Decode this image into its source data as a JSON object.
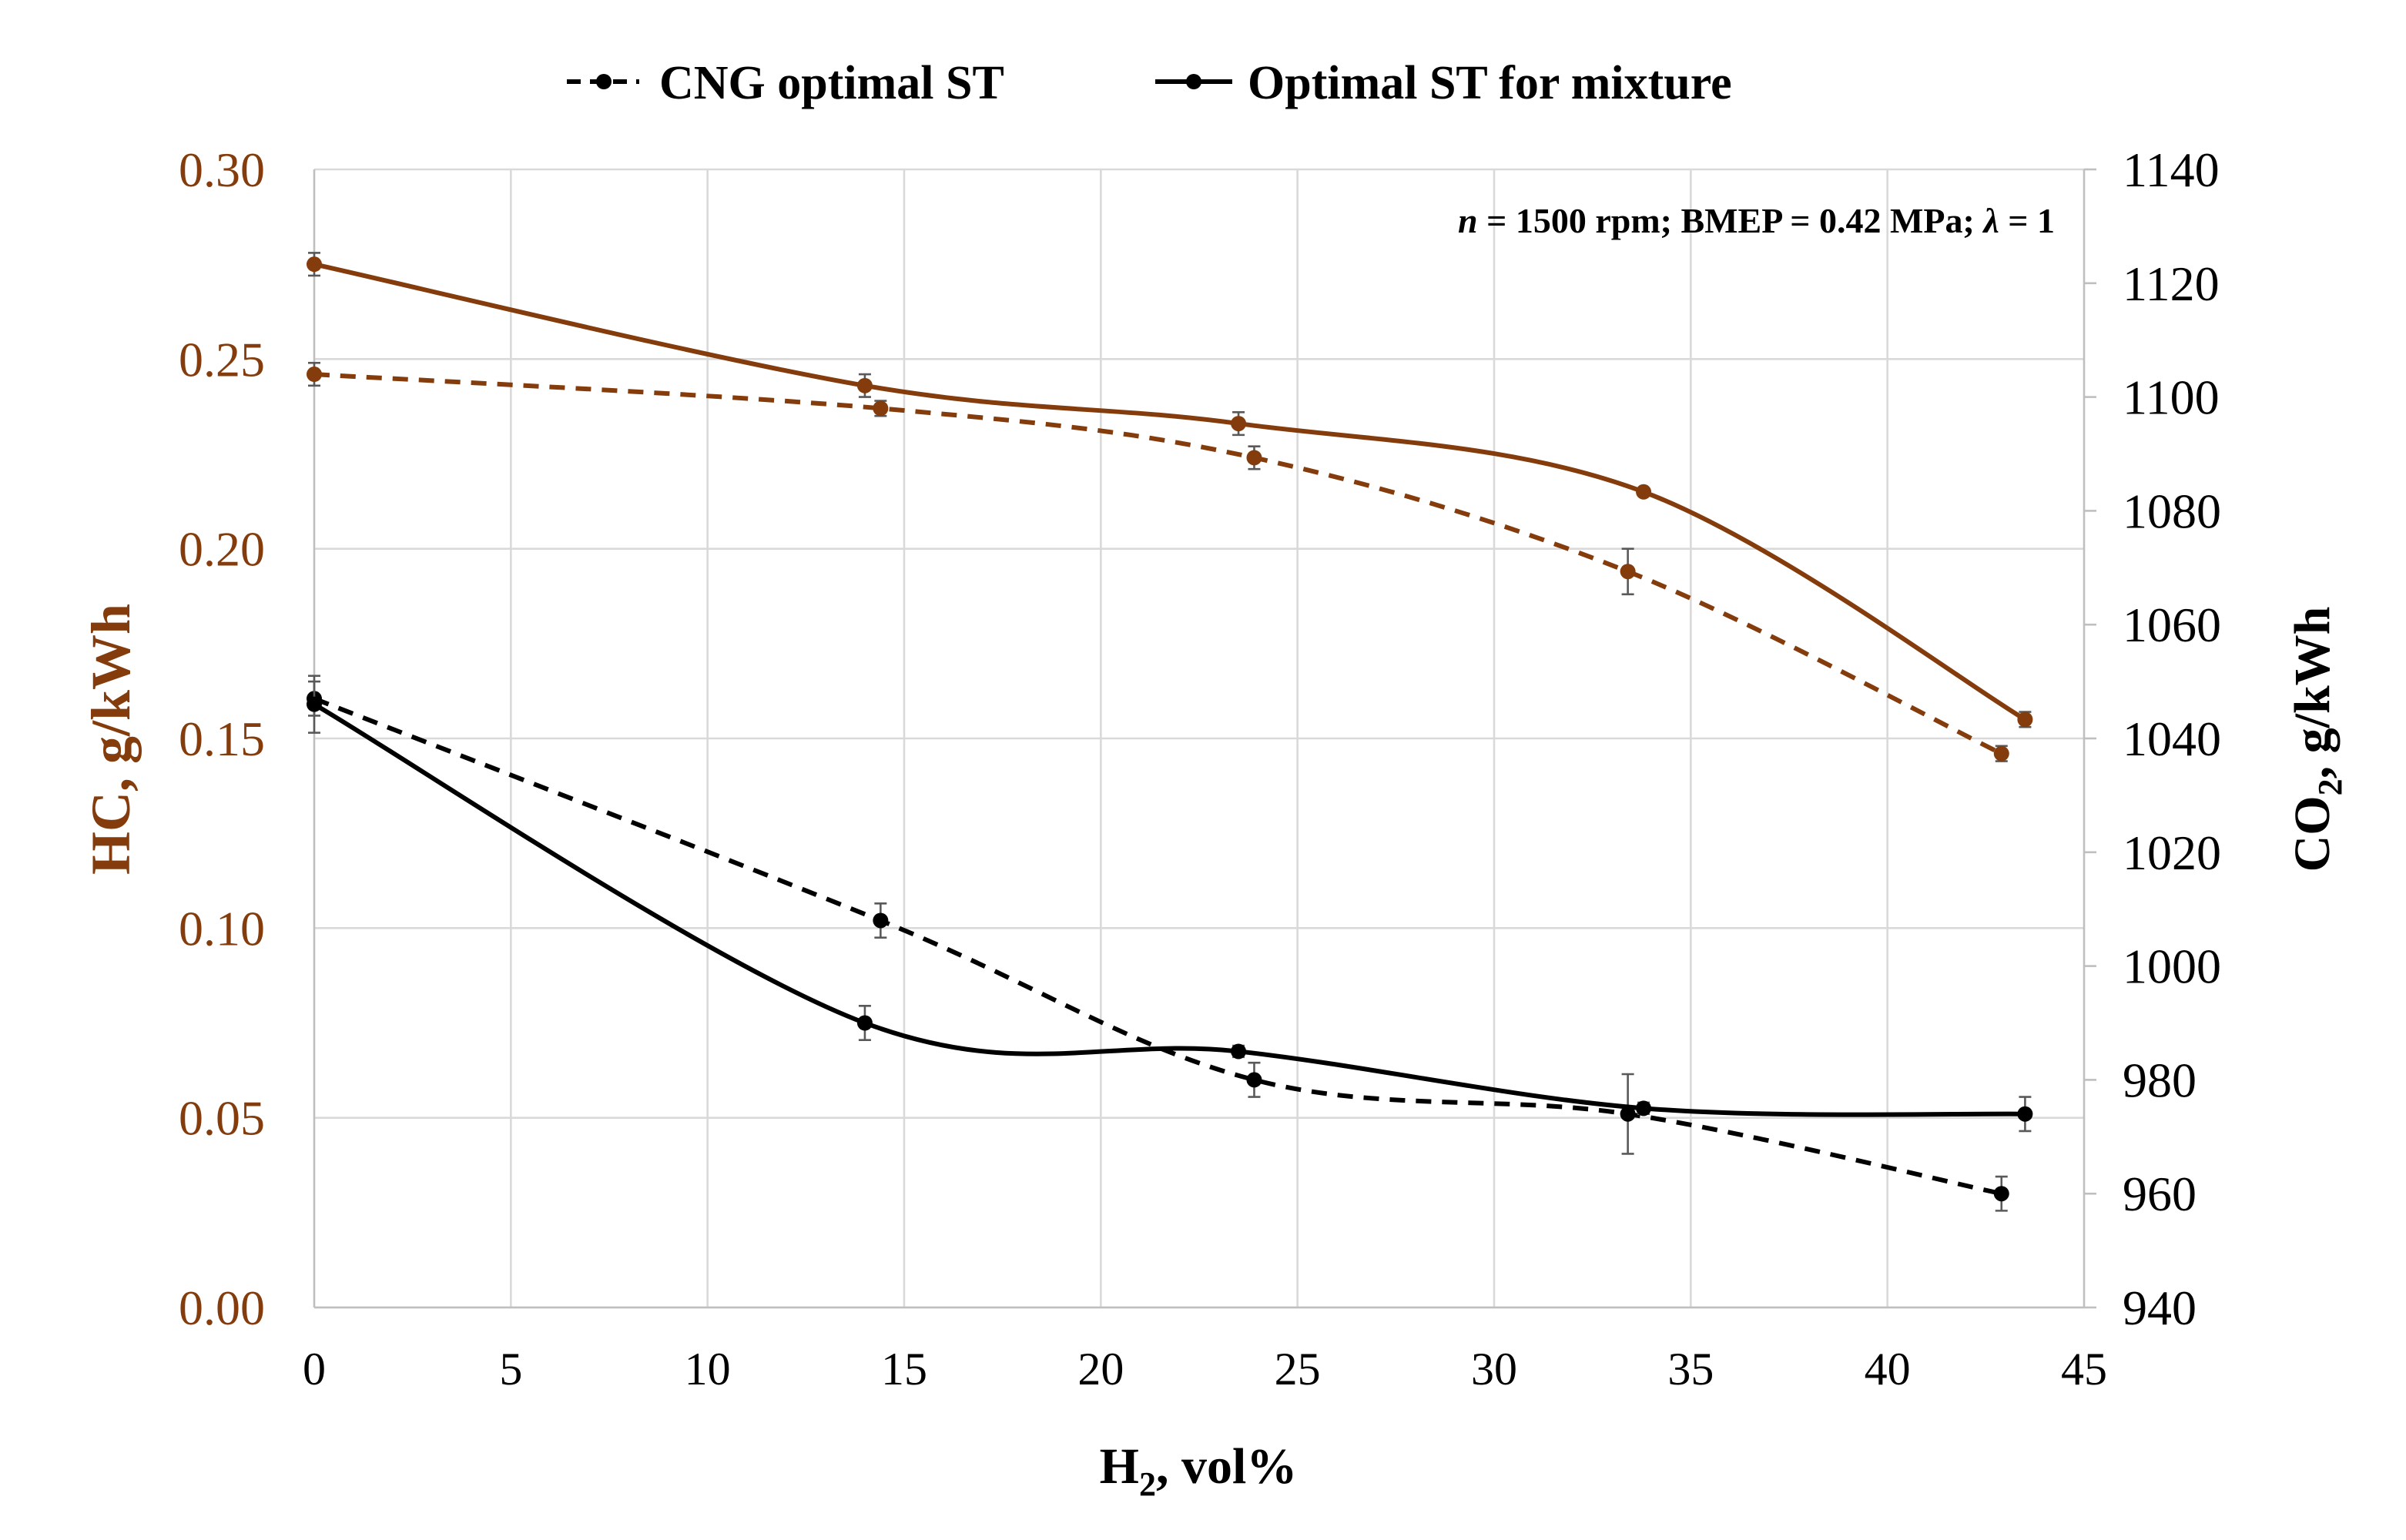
{
  "chart_data": {
    "type": "line",
    "annotation_prefix": "n",
    "annotation_rest": " = 1500 rpm; BMEP = 0.42 MPa; ",
    "annotation_lambda": "λ",
    "annotation_end": " = 1",
    "xlabel_main": "H",
    "xlabel_sub": "2",
    "xlabel_rest": ", vol%",
    "ylabel_left": "HC, g/kWh",
    "ylabel_right_main": "CO",
    "ylabel_right_sub": "2",
    "ylabel_right_rest": ", g/kWh",
    "xlim": [
      0,
      45
    ],
    "ylim_left": [
      0,
      0.3
    ],
    "ylim_right": [
      940,
      1140
    ],
    "x_ticks": [
      "0",
      "5",
      "10",
      "15",
      "20",
      "25",
      "30",
      "35",
      "40",
      "45"
    ],
    "y_left_ticks": [
      "0.00",
      "0.05",
      "0.10",
      "0.15",
      "0.20",
      "0.25",
      "0.30"
    ],
    "y_right_ticks": [
      "940",
      "960",
      "980",
      "1000",
      "1020",
      "1040",
      "1060",
      "1080",
      "1100",
      "1120",
      "1140"
    ],
    "grid": true,
    "legend_position": "top-center",
    "legend": [
      "CNG optimal ST",
      "Optimal ST for mixture"
    ],
    "colors": {
      "hc": "#843C0C",
      "co2": "#000000",
      "grid": "#D9D9D9",
      "error": "#595959"
    },
    "series": [
      {
        "name": "CNG optimal ST",
        "quantity": "HC",
        "axis": "left",
        "style": "dashed",
        "x": [
          0,
          14.4,
          23.9,
          33.4,
          42.9
        ],
        "y": [
          0.246,
          0.237,
          0.224,
          0.194,
          0.146
        ],
        "err": [
          0.003,
          0.002,
          0.003,
          0.006,
          0.002
        ]
      },
      {
        "name": "Optimal ST for mixture",
        "quantity": "HC",
        "axis": "left",
        "style": "solid",
        "x": [
          0,
          14.0,
          23.5,
          33.8,
          43.5
        ],
        "y": [
          0.275,
          0.243,
          0.233,
          0.215,
          0.155
        ],
        "err": [
          0.003,
          0.003,
          0.003,
          0.001,
          0.002
        ]
      },
      {
        "name": "CNG optimal ST",
        "quantity": "CO2",
        "axis": "right",
        "style": "dashed",
        "x": [
          0,
          14.4,
          23.9,
          33.4,
          42.9
        ],
        "y": [
          1047,
          1008,
          980,
          974,
          960
        ],
        "err": [
          3,
          3,
          3,
          7,
          3
        ]
      },
      {
        "name": "Optimal ST for mixture",
        "quantity": "CO2",
        "axis": "right",
        "style": "solid",
        "x": [
          0,
          14.0,
          23.5,
          33.8,
          43.5
        ],
        "y": [
          1046,
          990,
          985,
          975,
          974
        ],
        "err": [
          5,
          3,
          1,
          1,
          3
        ]
      }
    ]
  }
}
